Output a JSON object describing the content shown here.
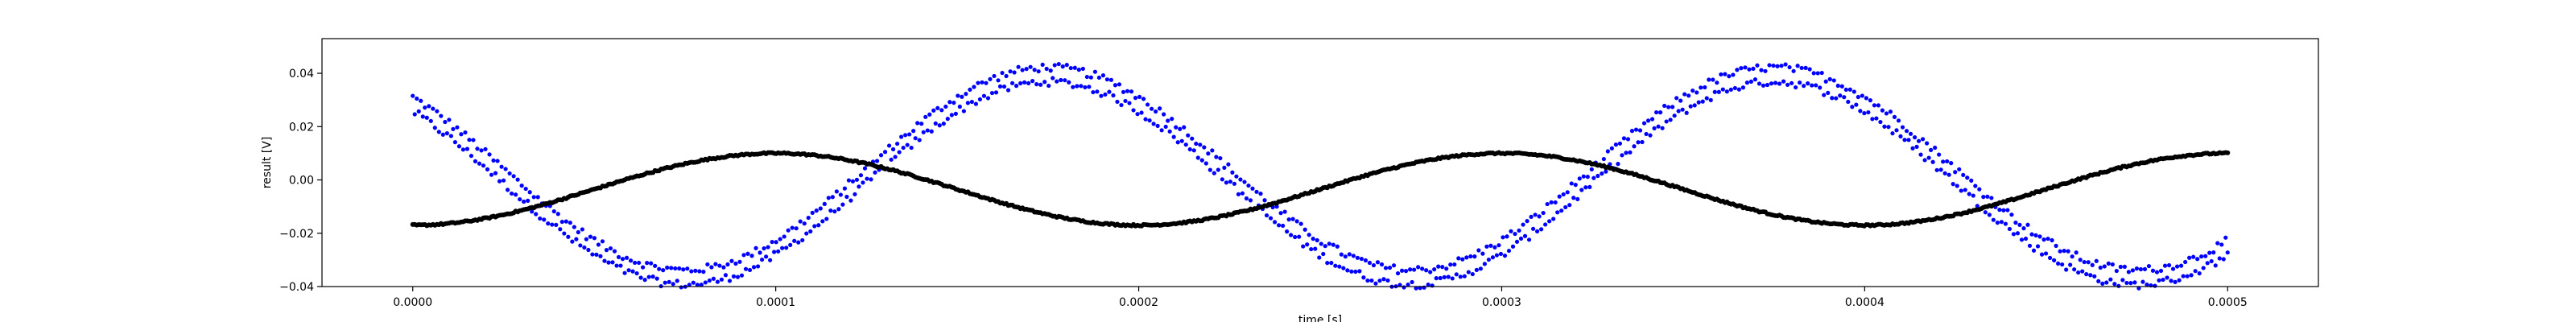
{
  "chart_data": {
    "type": "scatter",
    "title": "",
    "xlabel": "time [s]",
    "ylabel": "result [V]",
    "xlim": [
      -2.5e-05,
      0.000525
    ],
    "ylim": [
      -0.04,
      0.053
    ],
    "grid": false,
    "legend": "none",
    "x_ticks": [
      0,
      0.0001,
      0.0002,
      0.0003,
      0.0004,
      0.0005
    ],
    "x_tick_labels": [
      "0.0000",
      "0.0001",
      "0.0002",
      "0.0003",
      "0.0004",
      "0.0005"
    ],
    "y_ticks": [
      -0.04,
      -0.02,
      0.0,
      0.02,
      0.04
    ],
    "y_tick_labels": [
      "−0.04",
      "−0.02",
      "0.00",
      "0.02",
      "0.04"
    ],
    "x_range": [
      0,
      0.0005
    ],
    "series": [
      {
        "color": "#0000ff",
        "marker": "dot",
        "points_count": 900,
        "amplitude": 0.038,
        "offset": 0.0015,
        "frequency_hz": 5000,
        "phase_peak_at_s": 0.000175,
        "noise": 0.003
      },
      {
        "color": "#000000",
        "marker": "dot",
        "points_count": 900,
        "amplitude": 0.0135,
        "offset": -0.0035,
        "frequency_hz": 5000,
        "phase_peak_at_s": 0.0001,
        "noise": 0.0006
      }
    ]
  }
}
